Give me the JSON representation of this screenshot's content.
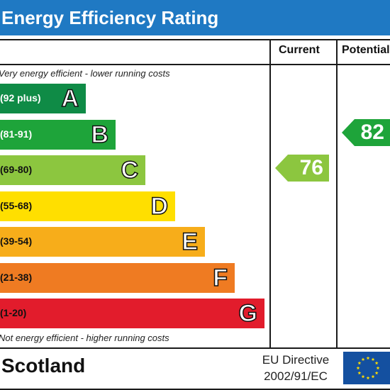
{
  "title": "Energy Efficiency Rating",
  "columns": {
    "current": "Current",
    "potential": "Potential"
  },
  "notes": {
    "top": "Very energy efficient - lower running costs",
    "bottom": "Not energy efficient - higher running costs"
  },
  "footer": {
    "region": "Scotland",
    "directive_line1": "EU Directive",
    "directive_line2": "2002/91/EC"
  },
  "colors": {
    "header": "#1f79c3",
    "A": "#0f8b46",
    "B": "#1ea43a",
    "C": "#8cc63f",
    "D": "#ffdf00",
    "E": "#f7ad1a",
    "F": "#ef7b22",
    "G": "#e21c2c"
  },
  "chart_data": {
    "type": "bar",
    "title": "Energy Efficiency Rating",
    "categories": [
      "A",
      "B",
      "C",
      "D",
      "E",
      "F",
      "G"
    ],
    "ranges": [
      "(92 plus)",
      "(81-91)",
      "(69-80)",
      "(55-68)",
      "(39-54)",
      "(21-38)",
      "(1-20)"
    ],
    "current": {
      "label": "Current",
      "value": 76,
      "band": "C"
    },
    "potential": {
      "label": "Potential",
      "value": 82,
      "band": "B"
    }
  }
}
